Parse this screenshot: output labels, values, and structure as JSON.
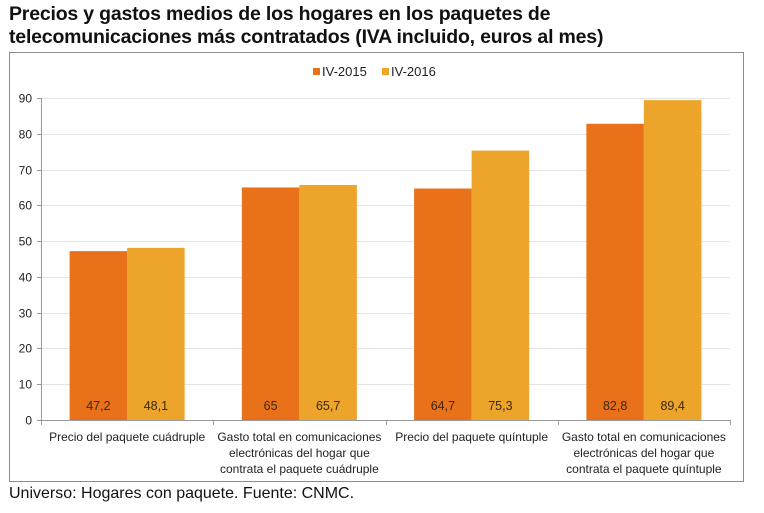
{
  "chart_data": {
    "type": "bar",
    "title": "Precios y gastos medios de los hogares en los paquetes de telecomunicaciones más contratados (IVA incluido, euros al mes)",
    "title_lines": [
      "Precios y gastos medios de los hogares en los paquetes de",
      "telecomunicaciones más contratados (IVA incluido, euros al mes)"
    ],
    "xlabel": "",
    "ylabel": "",
    "ylim": [
      0,
      90
    ],
    "yticks": [
      0,
      10,
      20,
      30,
      40,
      50,
      60,
      70,
      80,
      90
    ],
    "grid": true,
    "legend_position": "top-center",
    "categories": [
      "Precio del paquete cuádruple",
      "Gasto total en comunicaciones electrónicas del hogar que contrata el paquete cuádruple",
      "Precio del paquete quíntuple",
      "Gasto total en comunicaciones electrónicas del hogar que contrata el paquete quíntuple"
    ],
    "category_lines": [
      [
        "Precio del paquete cuádruple"
      ],
      [
        "Gasto total en comunicaciones",
        "electrónicas del hogar que",
        "contrata el paquete cuádruple"
      ],
      [
        "Precio del paquete quíntuple"
      ],
      [
        "Gasto total en comunicaciones",
        "electrónicas del hogar que",
        "contrata el paquete quíntuple"
      ]
    ],
    "series": [
      {
        "name": "IV-2015",
        "color": "#e8711a",
        "values": [
          47.2,
          65,
          64.7,
          82.8
        ],
        "labels": [
          "47,2",
          "65",
          "64,7",
          "82,8"
        ]
      },
      {
        "name": "IV-2016",
        "color": "#eda42a",
        "values": [
          48.1,
          65.7,
          75.3,
          89.4
        ],
        "labels": [
          "48,1",
          "65,7",
          "75,3",
          "89,4"
        ]
      }
    ]
  },
  "footer": "Universo: Hogares con paquete. Fuente: CNMC."
}
